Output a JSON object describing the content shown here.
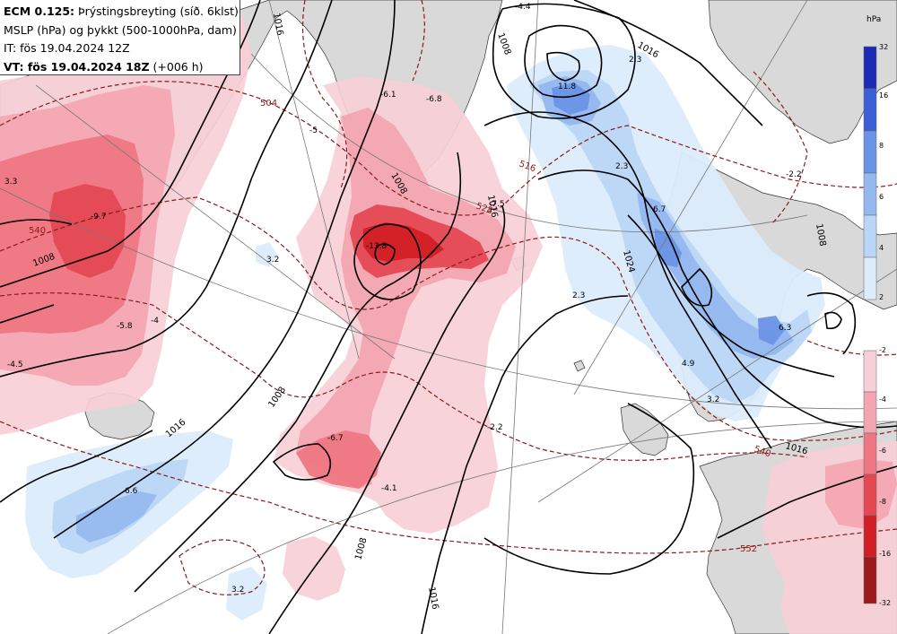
{
  "header": {
    "line1_bold": "ECM 0.125:",
    "line1_rest": " Þrýstingsbreyting (síð. 6klst)",
    "line2": "MSLP (hPa) og þykkt (500-1000hPa, dam)",
    "line3": "IT: fös 19.04.2024 12Z",
    "line4_bold": "VT: fös 19.04.2024 18Z",
    "line4_rest": " (+006 h)"
  },
  "legend": {
    "unit": "hPa",
    "rise_scale": {
      "labels": [
        "32",
        "16",
        "8",
        "6",
        "4",
        "2"
      ],
      "colors": [
        "#1c2bb5",
        "#3b5fd6",
        "#6b93e6",
        "#94b8ef",
        "#bad6f6",
        "#dcecfb"
      ]
    },
    "fall_scale": {
      "labels": [
        "-2",
        "-4",
        "-6",
        "-8",
        "-16",
        "-32"
      ],
      "colors": [
        "#f7cfd6",
        "#f3a5b1",
        "#ee7683",
        "#e44953",
        "#d21f26",
        "#9c1a1e"
      ]
    }
  },
  "colors": {
    "land": "#d9d9d9",
    "sea": "#ffffff",
    "isobar": "#000000",
    "thickness": "#8b1a1a"
  },
  "pressure_change_labels": [
    {
      "text": "11.8"
    },
    {
      "text": "-6.1"
    },
    {
      "text": "-6.8"
    },
    {
      "text": "2.3"
    },
    {
      "text": "-9.7"
    },
    {
      "text": "3.3"
    },
    {
      "text": "-5.8"
    },
    {
      "text": "-4.5"
    },
    {
      "text": "-4"
    },
    {
      "text": "2.3"
    },
    {
      "text": "6.7"
    },
    {
      "text": "-2.2"
    },
    {
      "text": "2.3"
    },
    {
      "text": "-13.8"
    },
    {
      "text": "3.2"
    },
    {
      "text": "-6.7"
    },
    {
      "text": "-4.1"
    },
    {
      "text": "-2.2"
    },
    {
      "text": "4.9"
    },
    {
      "text": "3.2"
    },
    {
      "text": "6.3"
    },
    {
      "text": "6.6"
    },
    {
      "text": "3.2"
    },
    {
      "text": "-5"
    },
    {
      "text": "-7.5"
    },
    {
      "text": "-4.4"
    }
  ],
  "isobar_labels": [
    {
      "text": "1016"
    },
    {
      "text": "1008"
    },
    {
      "text": "1008"
    },
    {
      "text": "1016"
    },
    {
      "text": "1008"
    },
    {
      "text": "1024"
    },
    {
      "text": "1016"
    },
    {
      "text": "1016"
    },
    {
      "text": "1008"
    },
    {
      "text": "1016"
    },
    {
      "text": "1008"
    },
    {
      "text": "1008"
    },
    {
      "text": "1016"
    }
  ],
  "thickness_labels": [
    {
      "text": "504"
    },
    {
      "text": "540"
    },
    {
      "text": "516"
    },
    {
      "text": "528"
    },
    {
      "text": "540"
    },
    {
      "text": "552"
    }
  ]
}
